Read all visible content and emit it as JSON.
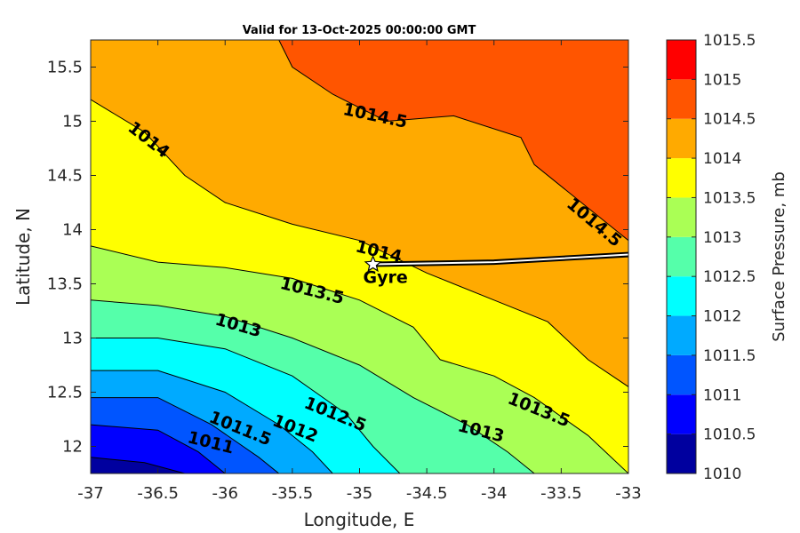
{
  "chart_data": {
    "type": "contourf",
    "title": "Valid for 13-Oct-2025 00:00:00 GMT",
    "xlabel": "Longitude, E",
    "ylabel": "Latitude, N",
    "xlim": [
      -37,
      -33
    ],
    "ylim": [
      11.75,
      15.75
    ],
    "x_ticks": [
      "-37",
      "-36.5",
      "-36",
      "-35.5",
      "-35",
      "-34.5",
      "-34",
      "-33.5",
      "-33"
    ],
    "y_ticks": [
      "12",
      "12.5",
      "13",
      "13.5",
      "14",
      "14.5",
      "15",
      "15.5"
    ],
    "colorbar": {
      "label": "Surface Pressure, mb",
      "levels": [
        "1010",
        "1010.5",
        "1011",
        "1011.5",
        "1012",
        "1012.5",
        "1013",
        "1013.5",
        "1014",
        "1014.5",
        "1015",
        "1015.5"
      ],
      "colors": [
        "#00009f",
        "#0000ff",
        "#0055ff",
        "#00aaff",
        "#00ffff",
        "#55ffaa",
        "#aaff55",
        "#ffff00",
        "#ffaa00",
        "#ff5500",
        "#ff0000"
      ]
    },
    "contour_labels": [
      "1014.5",
      "1014",
      "1014.5",
      "1014",
      "1013.5",
      "1013",
      "1013.5",
      "1012.5",
      "1013",
      "1012",
      "1011.5",
      "1011"
    ],
    "boundaries": [
      {
        "level": 1014.5,
        "points": [
          [
            -35.6,
            15.75
          ],
          [
            -35.5,
            15.5
          ],
          [
            -35.2,
            15.25
          ],
          [
            -34.8,
            15.0
          ],
          [
            -34.3,
            15.05
          ],
          [
            -33.8,
            14.85
          ],
          [
            -33.7,
            14.6
          ],
          [
            -33.3,
            14.2
          ],
          [
            -33.0,
            13.9
          ]
        ]
      },
      {
        "level": 1014.0,
        "points": [
          [
            -37.0,
            15.2
          ],
          [
            -36.6,
            14.9
          ],
          [
            -36.3,
            14.5
          ],
          [
            -36.0,
            14.25
          ],
          [
            -35.5,
            14.05
          ],
          [
            -35.0,
            13.9
          ],
          [
            -34.5,
            13.6
          ],
          [
            -34.0,
            13.35
          ],
          [
            -33.6,
            13.15
          ],
          [
            -33.3,
            12.8
          ],
          [
            -33.0,
            12.55
          ]
        ]
      },
      {
        "level": 1013.5,
        "points": [
          [
            -37.0,
            13.85
          ],
          [
            -36.5,
            13.7
          ],
          [
            -36.0,
            13.65
          ],
          [
            -35.5,
            13.55
          ],
          [
            -35.0,
            13.35
          ],
          [
            -34.6,
            13.1
          ],
          [
            -34.4,
            12.8
          ],
          [
            -34.0,
            12.65
          ],
          [
            -33.7,
            12.45
          ],
          [
            -33.3,
            12.1
          ],
          [
            -33.0,
            11.75
          ]
        ]
      },
      {
        "level": 1013.0,
        "points": [
          [
            -37.0,
            13.35
          ],
          [
            -36.5,
            13.3
          ],
          [
            -36.0,
            13.2
          ],
          [
            -35.5,
            13.0
          ],
          [
            -35.0,
            12.75
          ],
          [
            -34.6,
            12.45
          ],
          [
            -34.2,
            12.2
          ],
          [
            -33.9,
            11.95
          ],
          [
            -33.7,
            11.75
          ]
        ]
      },
      {
        "level": 1012.5,
        "points": [
          [
            -37.0,
            13.0
          ],
          [
            -36.5,
            13.0
          ],
          [
            -36.0,
            12.9
          ],
          [
            -35.5,
            12.65
          ],
          [
            -35.1,
            12.3
          ],
          [
            -34.9,
            12.0
          ],
          [
            -34.7,
            11.75
          ]
        ]
      },
      {
        "level": 1012.0,
        "points": [
          [
            -37.0,
            12.7
          ],
          [
            -36.5,
            12.7
          ],
          [
            -36.0,
            12.5
          ],
          [
            -35.6,
            12.2
          ],
          [
            -35.35,
            11.95
          ],
          [
            -35.2,
            11.75
          ]
        ]
      },
      {
        "level": 1011.5,
        "points": [
          [
            -37.0,
            12.45
          ],
          [
            -36.5,
            12.45
          ],
          [
            -36.1,
            12.2
          ],
          [
            -35.75,
            11.9
          ],
          [
            -35.6,
            11.75
          ]
        ]
      },
      {
        "level": 1011.0,
        "points": [
          [
            -37.0,
            12.2
          ],
          [
            -36.5,
            12.15
          ],
          [
            -36.2,
            11.95
          ],
          [
            -36.0,
            11.75
          ]
        ]
      },
      {
        "level": 1010.5,
        "points": [
          [
            -37.0,
            11.9
          ],
          [
            -36.6,
            11.85
          ],
          [
            -36.3,
            11.75
          ]
        ]
      }
    ],
    "annotation": {
      "text": "Gyre",
      "x": -34.9,
      "y": 13.68
    },
    "track": [
      [
        -34.9,
        13.68
      ],
      [
        -34.0,
        13.7
      ],
      [
        -33.0,
        13.77
      ]
    ]
  }
}
